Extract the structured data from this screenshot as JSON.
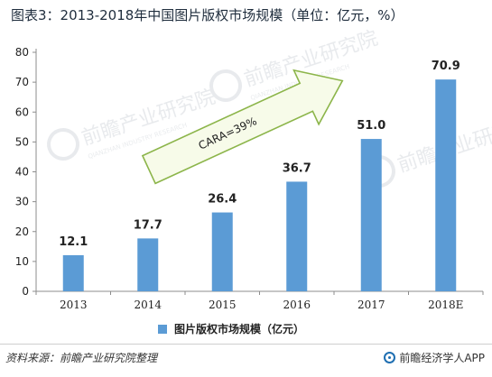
{
  "title": "图表3：2013-2018年中国图片版权市场规模（单位：亿元，%）",
  "footer": {
    "source": "资料来源：前瞻产业研究院整理",
    "brand": "前瞻经济学人APP",
    "brand_icon": "qianzhan-logo-icon"
  },
  "watermark": {
    "text": "前瞻产业研究院",
    "subtext": "QIANZHAN INDUSTRY RESEARCH"
  },
  "chart_data": {
    "type": "bar",
    "categories": [
      "2013",
      "2014",
      "2015",
      "2016",
      "2017",
      "2018E"
    ],
    "series": [
      {
        "name": "图片版权市场规模（亿元）",
        "values": [
          12.1,
          17.7,
          26.4,
          36.7,
          51.0,
          70.9
        ],
        "labels": [
          "12.1",
          "17.7",
          "26.4",
          "36.7",
          "51.0",
          "70.9"
        ]
      }
    ],
    "ylim": [
      0,
      80
    ],
    "yticks": [
      0,
      10,
      20,
      30,
      40,
      50,
      60,
      70,
      80
    ],
    "grid": false,
    "legend": "bottom",
    "annotation": {
      "text": "CARA=39%",
      "shape": "arrow",
      "direction": "up-right"
    },
    "colors": {
      "bar": "#5b9bd5",
      "arrow_fill": "#f7fbe9",
      "arrow_stroke": "#8cb54a",
      "axis": "#8c8c8c"
    }
  }
}
